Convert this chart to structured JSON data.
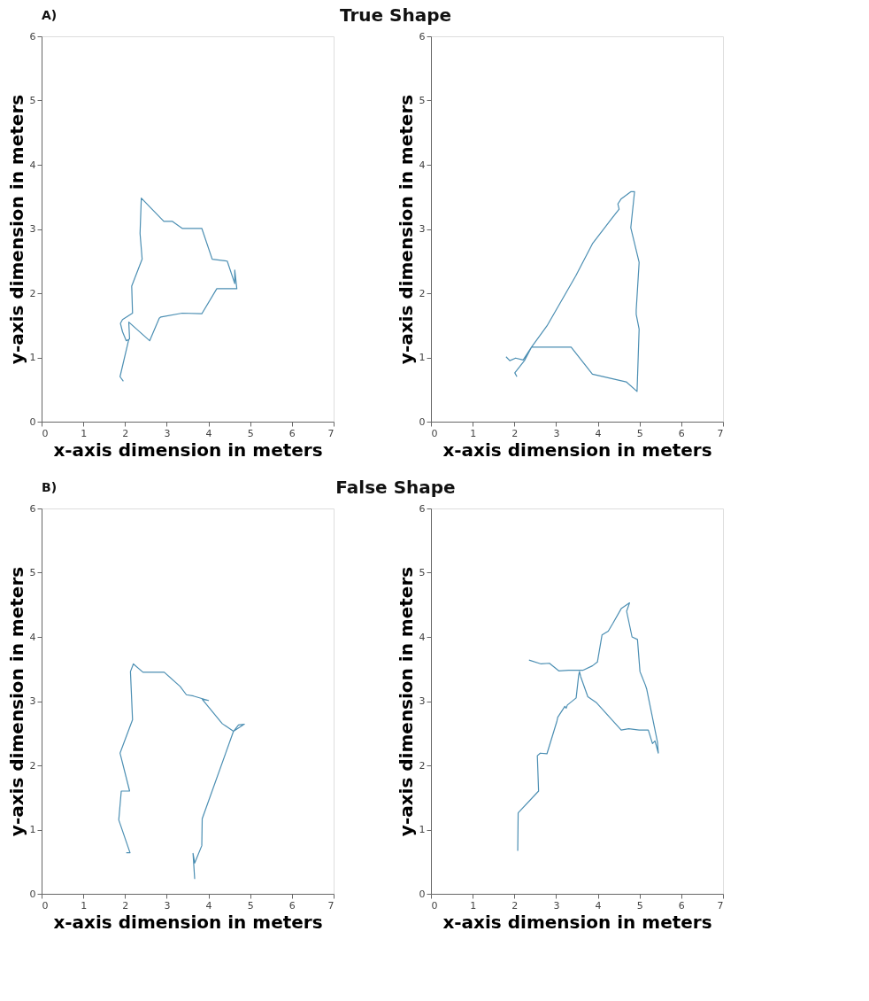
{
  "chart_data": [
    {
      "type": "line",
      "annotations": [
        "A)",
        "True Shape"
      ],
      "xlabel": "x-axis dimension in meters",
      "ylabel": "y-axis dimension in meters",
      "xlim": [
        0,
        7
      ],
      "ylim": [
        0,
        6
      ],
      "xticks": [
        0,
        1,
        2,
        3,
        4,
        5,
        6,
        7
      ],
      "yticks": [
        0,
        1,
        2,
        3,
        4,
        5,
        6
      ],
      "grid": false,
      "series": [
        {
          "color": "#4c8fb3",
          "x": [
            1.96,
            1.88,
            2.09,
            2.03,
            1.94,
            1.89,
            1.94,
            2.18,
            2.16,
            2.41,
            2.36,
            2.39,
            2.93,
            3.13,
            3.37,
            3.84,
            4.09,
            4.45,
            4.63,
            4.63,
            4.68,
            4.2,
            3.84,
            3.37,
            2.86,
            2.82,
            2.59,
            2.09,
            2.11
          ],
          "values": [
            0.63,
            0.7,
            1.28,
            1.26,
            1.4,
            1.53,
            1.59,
            1.69,
            2.11,
            2.53,
            2.93,
            3.48,
            3.12,
            3.12,
            3.01,
            3.01,
            2.53,
            2.5,
            2.15,
            2.36,
            2.07,
            2.07,
            1.68,
            1.69,
            1.63,
            1.61,
            1.26,
            1.55,
            1.28
          ]
        }
      ]
    },
    {
      "type": "line",
      "xlabel": "x-axis dimension in meters",
      "ylabel": "y-axis dimension in meters",
      "xlim": [
        0,
        7
      ],
      "ylim": [
        0,
        6
      ],
      "xticks": [
        0,
        1,
        2,
        3,
        4,
        5,
        6,
        7
      ],
      "yticks": [
        0,
        1,
        2,
        3,
        4,
        5,
        6
      ],
      "grid": false,
      "series": [
        {
          "color": "#4c8fb3",
          "x": [
            1.8,
            1.89,
            2.03,
            2.21,
            2.41,
            3.36,
            3.87,
            4.68,
            4.94,
            4.99,
            4.92,
            4.92,
            4.99,
            4.79,
            4.88,
            4.79,
            4.56,
            4.48,
            4.51,
            4.33,
            3.87,
            3.47,
            2.78,
            2.41,
            2.24,
            2.01,
            2.06
          ],
          "values": [
            1.01,
            0.95,
            0.99,
            0.96,
            1.16,
            1.16,
            0.74,
            0.62,
            0.47,
            1.44,
            1.67,
            1.74,
            2.48,
            3.02,
            3.58,
            3.58,
            3.47,
            3.39,
            3.31,
            3.16,
            2.77,
            2.27,
            1.49,
            1.16,
            0.95,
            0.76,
            0.7
          ]
        }
      ]
    },
    {
      "type": "line",
      "annotations": [
        "B)",
        "False Shape"
      ],
      "xlabel": "x-axis dimension in meters",
      "ylabel": "y-axis dimension in meters",
      "xlim": [
        0,
        7
      ],
      "ylim": [
        0,
        6
      ],
      "xticks": [
        0,
        1,
        2,
        3,
        4,
        5,
        6,
        7
      ],
      "yticks": [
        0,
        1,
        2,
        3,
        4,
        5,
        6
      ],
      "grid": false,
      "series": [
        {
          "color": "#4c8fb3",
          "x": [
            3.67,
            3.63,
            3.67,
            3.84,
            3.85,
            4.6,
            4.86,
            4.72,
            4.6,
            4.33,
            3.85,
            4.0,
            3.64,
            3.47,
            3.32,
            2.94,
            2.43,
            2.2,
            2.13,
            2.18,
            1.88,
            2.11,
            1.91,
            1.85,
            2.12,
            2.03
          ],
          "values": [
            0.23,
            0.63,
            0.48,
            0.75,
            1.17,
            2.53,
            2.64,
            2.63,
            2.53,
            2.65,
            3.03,
            3.01,
            3.08,
            3.1,
            3.23,
            3.45,
            3.45,
            3.58,
            3.46,
            2.71,
            2.19,
            1.6,
            1.6,
            1.15,
            0.64,
            0.64
          ]
        }
      ]
    },
    {
      "type": "line",
      "xlabel": "x-axis dimension in meters",
      "ylabel": "y-axis dimension in meters",
      "xlim": [
        0,
        7
      ],
      "ylim": [
        0,
        6
      ],
      "xticks": [
        0,
        1,
        2,
        3,
        4,
        5,
        6,
        7
      ],
      "yticks": [
        0,
        1,
        2,
        3,
        4,
        5,
        6
      ],
      "grid": false,
      "series": [
        {
          "color": "#4c8fb3",
          "x": [
            2.08,
            2.09,
            2.58,
            2.55,
            2.62,
            2.78,
            3.02,
            3.04,
            3.21,
            3.24,
            3.27,
            3.48,
            3.54,
            3.56,
            3.59,
            3.76,
            3.96,
            4.56,
            4.74,
            4.99,
            5.21,
            5.31,
            5.37,
            5.45,
            5.43,
            5.17,
            5.14,
            5.01,
            4.95,
            4.82,
            4.69,
            4.76,
            4.56,
            4.36,
            4.25,
            4.1,
            3.99,
            3.87,
            3.64,
            3.3,
            3.07,
            2.84,
            2.64,
            2.35
          ],
          "values": [
            0.67,
            1.26,
            1.6,
            2.15,
            2.19,
            2.18,
            2.69,
            2.75,
            2.92,
            2.89,
            2.94,
            3.05,
            3.4,
            3.46,
            3.38,
            3.07,
            2.98,
            2.55,
            2.57,
            2.55,
            2.55,
            2.34,
            2.38,
            2.19,
            2.36,
            3.19,
            3.25,
            3.46,
            3.96,
            4.0,
            4.4,
            4.53,
            4.44,
            4.21,
            4.09,
            4.03,
            3.61,
            3.55,
            3.48,
            3.48,
            3.47,
            3.59,
            3.58,
            3.64
          ]
        }
      ]
    }
  ]
}
